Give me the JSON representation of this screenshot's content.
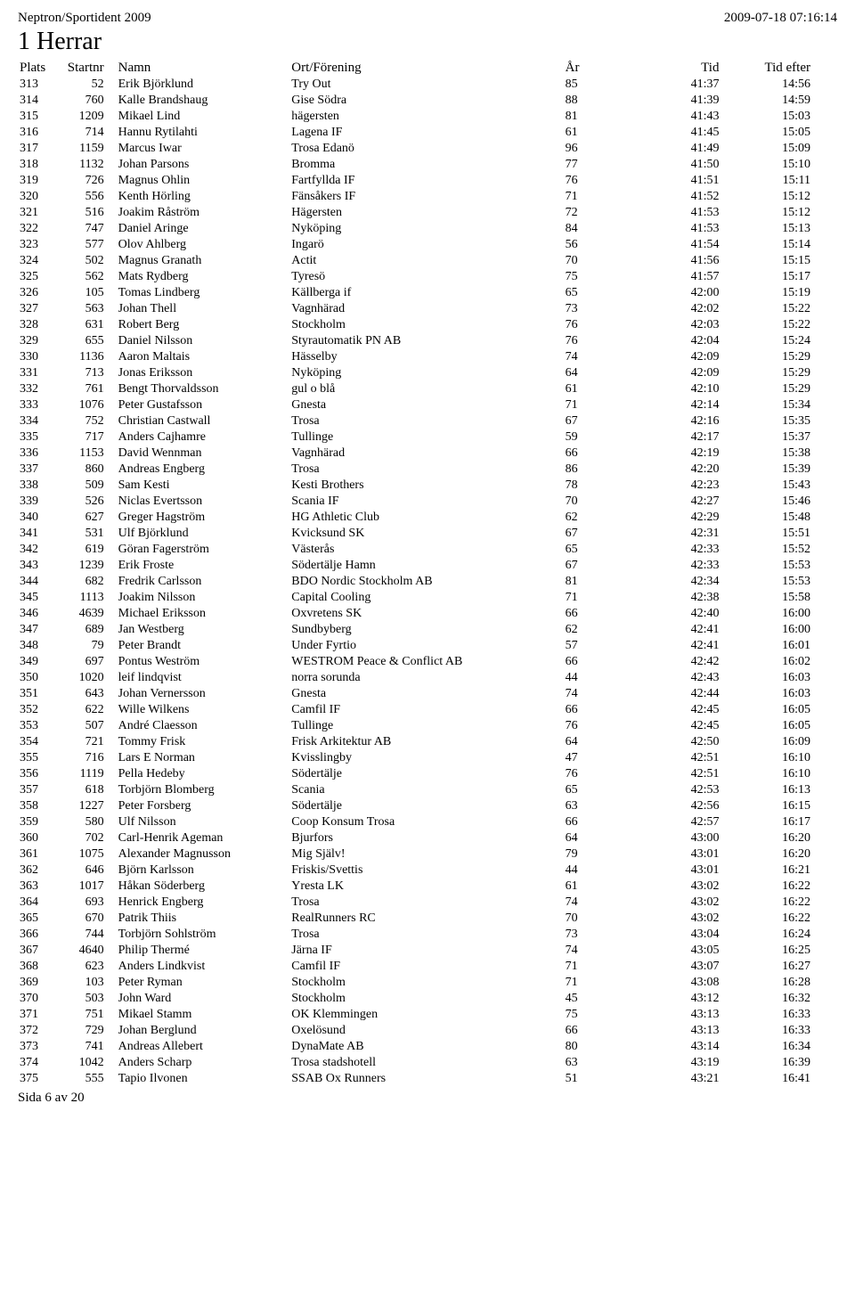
{
  "header": {
    "left": "Neptron/Sportident 2009",
    "right": "2009-07-18 07:16:14",
    "title": "1 Herrar"
  },
  "columns": {
    "plats": "Plats",
    "startnr": "Startnr",
    "namn": "Namn",
    "ort": "Ort/Förening",
    "ar": "År",
    "tid": "Tid",
    "tidefter": "Tid efter"
  },
  "footer": "Sida 6 av 20",
  "rows": [
    {
      "plats": "313",
      "startnr": "52",
      "namn": "Erik Björklund",
      "ort": "Try Out",
      "ar": "85",
      "tid": "41:37",
      "tidefter": "14:56"
    },
    {
      "plats": "314",
      "startnr": "760",
      "namn": "Kalle Brandshaug",
      "ort": "Gise Södra",
      "ar": "88",
      "tid": "41:39",
      "tidefter": "14:59"
    },
    {
      "plats": "315",
      "startnr": "1209",
      "namn": "Mikael Lind",
      "ort": "hägersten",
      "ar": "81",
      "tid": "41:43",
      "tidefter": "15:03"
    },
    {
      "plats": "316",
      "startnr": "714",
      "namn": "Hannu Rytilahti",
      "ort": "Lagena IF",
      "ar": "61",
      "tid": "41:45",
      "tidefter": "15:05"
    },
    {
      "plats": "317",
      "startnr": "1159",
      "namn": "Marcus Iwar",
      "ort": "Trosa Edanö",
      "ar": "96",
      "tid": "41:49",
      "tidefter": "15:09"
    },
    {
      "plats": "318",
      "startnr": "1132",
      "namn": "Johan Parsons",
      "ort": "Bromma",
      "ar": "77",
      "tid": "41:50",
      "tidefter": "15:10"
    },
    {
      "plats": "319",
      "startnr": "726",
      "namn": "Magnus Ohlin",
      "ort": "Fartfyllda IF",
      "ar": "76",
      "tid": "41:51",
      "tidefter": "15:11"
    },
    {
      "plats": "320",
      "startnr": "556",
      "namn": "Kenth Hörling",
      "ort": "Fänsåkers IF",
      "ar": "71",
      "tid": "41:52",
      "tidefter": "15:12"
    },
    {
      "plats": "321",
      "startnr": "516",
      "namn": "Joakim Råström",
      "ort": "Hägersten",
      "ar": "72",
      "tid": "41:53",
      "tidefter": "15:12"
    },
    {
      "plats": "322",
      "startnr": "747",
      "namn": "Daniel Aringe",
      "ort": "Nyköping",
      "ar": "84",
      "tid": "41:53",
      "tidefter": "15:13"
    },
    {
      "plats": "323",
      "startnr": "577",
      "namn": "Olov Ahlberg",
      "ort": "Ingarö",
      "ar": "56",
      "tid": "41:54",
      "tidefter": "15:14"
    },
    {
      "plats": "324",
      "startnr": "502",
      "namn": "Magnus Granath",
      "ort": "Actit",
      "ar": "70",
      "tid": "41:56",
      "tidefter": "15:15"
    },
    {
      "plats": "325",
      "startnr": "562",
      "namn": "Mats Rydberg",
      "ort": "Tyresö",
      "ar": "75",
      "tid": "41:57",
      "tidefter": "15:17"
    },
    {
      "plats": "326",
      "startnr": "105",
      "namn": "Tomas Lindberg",
      "ort": "Källberga if",
      "ar": "65",
      "tid": "42:00",
      "tidefter": "15:19"
    },
    {
      "plats": "327",
      "startnr": "563",
      "namn": "Johan Thell",
      "ort": "Vagnhärad",
      "ar": "73",
      "tid": "42:02",
      "tidefter": "15:22"
    },
    {
      "plats": "328",
      "startnr": "631",
      "namn": "Robert Berg",
      "ort": "Stockholm",
      "ar": "76",
      "tid": "42:03",
      "tidefter": "15:22"
    },
    {
      "plats": "329",
      "startnr": "655",
      "namn": "Daniel Nilsson",
      "ort": "Styrautomatik PN AB",
      "ar": "76",
      "tid": "42:04",
      "tidefter": "15:24"
    },
    {
      "plats": "330",
      "startnr": "1136",
      "namn": "Aaron Maltais",
      "ort": "Hässelby",
      "ar": "74",
      "tid": "42:09",
      "tidefter": "15:29"
    },
    {
      "plats": "331",
      "startnr": "713",
      "namn": "Jonas Eriksson",
      "ort": "Nyköping",
      "ar": "64",
      "tid": "42:09",
      "tidefter": "15:29"
    },
    {
      "plats": "332",
      "startnr": "761",
      "namn": "Bengt Thorvaldsson",
      "ort": "gul o blå",
      "ar": "61",
      "tid": "42:10",
      "tidefter": "15:29"
    },
    {
      "plats": "333",
      "startnr": "1076",
      "namn": "Peter Gustafsson",
      "ort": "Gnesta",
      "ar": "71",
      "tid": "42:14",
      "tidefter": "15:34"
    },
    {
      "plats": "334",
      "startnr": "752",
      "namn": "Christian Castwall",
      "ort": "Trosa",
      "ar": "67",
      "tid": "42:16",
      "tidefter": "15:35"
    },
    {
      "plats": "335",
      "startnr": "717",
      "namn": "Anders Cajhamre",
      "ort": "Tullinge",
      "ar": "59",
      "tid": "42:17",
      "tidefter": "15:37"
    },
    {
      "plats": "336",
      "startnr": "1153",
      "namn": "David Wennman",
      "ort": "Vagnhärad",
      "ar": "66",
      "tid": "42:19",
      "tidefter": "15:38"
    },
    {
      "plats": "337",
      "startnr": "860",
      "namn": "Andreas Engberg",
      "ort": "Trosa",
      "ar": "86",
      "tid": "42:20",
      "tidefter": "15:39"
    },
    {
      "plats": "338",
      "startnr": "509",
      "namn": "Sam Kesti",
      "ort": "Kesti Brothers",
      "ar": "78",
      "tid": "42:23",
      "tidefter": "15:43"
    },
    {
      "plats": "339",
      "startnr": "526",
      "namn": "Niclas Evertsson",
      "ort": "Scania IF",
      "ar": "70",
      "tid": "42:27",
      "tidefter": "15:46"
    },
    {
      "plats": "340",
      "startnr": "627",
      "namn": "Greger Hagström",
      "ort": "HG Athletic Club",
      "ar": "62",
      "tid": "42:29",
      "tidefter": "15:48"
    },
    {
      "plats": "341",
      "startnr": "531",
      "namn": "Ulf Björklund",
      "ort": "Kvicksund SK",
      "ar": "67",
      "tid": "42:31",
      "tidefter": "15:51"
    },
    {
      "plats": "342",
      "startnr": "619",
      "namn": "Göran Fagerström",
      "ort": "Västerås",
      "ar": "65",
      "tid": "42:33",
      "tidefter": "15:52"
    },
    {
      "plats": "343",
      "startnr": "1239",
      "namn": "Erik Froste",
      "ort": "Södertälje Hamn",
      "ar": "67",
      "tid": "42:33",
      "tidefter": "15:53"
    },
    {
      "plats": "344",
      "startnr": "682",
      "namn": "Fredrik Carlsson",
      "ort": "BDO Nordic Stockholm AB",
      "ar": "81",
      "tid": "42:34",
      "tidefter": "15:53"
    },
    {
      "plats": "345",
      "startnr": "1113",
      "namn": "Joakim Nilsson",
      "ort": "Capital Cooling",
      "ar": "71",
      "tid": "42:38",
      "tidefter": "15:58"
    },
    {
      "plats": "346",
      "startnr": "4639",
      "namn": "Michael Eriksson",
      "ort": "Oxvretens SK",
      "ar": "66",
      "tid": "42:40",
      "tidefter": "16:00"
    },
    {
      "plats": "347",
      "startnr": "689",
      "namn": "Jan Westberg",
      "ort": "Sundbyberg",
      "ar": "62",
      "tid": "42:41",
      "tidefter": "16:00"
    },
    {
      "plats": "348",
      "startnr": "79",
      "namn": "Peter Brandt",
      "ort": "Under Fyrtio",
      "ar": "57",
      "tid": "42:41",
      "tidefter": "16:01"
    },
    {
      "plats": "349",
      "startnr": "697",
      "namn": "Pontus Weström",
      "ort": "WESTROM Peace & Conflict AB",
      "ar": "66",
      "tid": "42:42",
      "tidefter": "16:02"
    },
    {
      "plats": "350",
      "startnr": "1020",
      "namn": "leif lindqvist",
      "ort": "norra sorunda",
      "ar": "44",
      "tid": "42:43",
      "tidefter": "16:03"
    },
    {
      "plats": "351",
      "startnr": "643",
      "namn": "Johan Vernersson",
      "ort": "Gnesta",
      "ar": "74",
      "tid": "42:44",
      "tidefter": "16:03"
    },
    {
      "plats": "352",
      "startnr": "622",
      "namn": "Wille Wilkens",
      "ort": "Camfil IF",
      "ar": "66",
      "tid": "42:45",
      "tidefter": "16:05"
    },
    {
      "plats": "353",
      "startnr": "507",
      "namn": "André Claesson",
      "ort": "Tullinge",
      "ar": "76",
      "tid": "42:45",
      "tidefter": "16:05"
    },
    {
      "plats": "354",
      "startnr": "721",
      "namn": "Tommy Frisk",
      "ort": "Frisk Arkitektur AB",
      "ar": "64",
      "tid": "42:50",
      "tidefter": "16:09"
    },
    {
      "plats": "355",
      "startnr": "716",
      "namn": "Lars E Norman",
      "ort": "Kvisslingby",
      "ar": "47",
      "tid": "42:51",
      "tidefter": "16:10"
    },
    {
      "plats": "356",
      "startnr": "1119",
      "namn": "Pella Hedeby",
      "ort": "Södertälje",
      "ar": "76",
      "tid": "42:51",
      "tidefter": "16:10"
    },
    {
      "plats": "357",
      "startnr": "618",
      "namn": "Torbjörn Blomberg",
      "ort": "Scania",
      "ar": "65",
      "tid": "42:53",
      "tidefter": "16:13"
    },
    {
      "plats": "358",
      "startnr": "1227",
      "namn": "Peter Forsberg",
      "ort": "Södertälje",
      "ar": "63",
      "tid": "42:56",
      "tidefter": "16:15"
    },
    {
      "plats": "359",
      "startnr": "580",
      "namn": "Ulf Nilsson",
      "ort": "Coop Konsum Trosa",
      "ar": "66",
      "tid": "42:57",
      "tidefter": "16:17"
    },
    {
      "plats": "360",
      "startnr": "702",
      "namn": "Carl-Henrik Ageman",
      "ort": "Bjurfors",
      "ar": "64",
      "tid": "43:00",
      "tidefter": "16:20"
    },
    {
      "plats": "361",
      "startnr": "1075",
      "namn": "Alexander Magnusson",
      "ort": "Mig Själv!",
      "ar": "79",
      "tid": "43:01",
      "tidefter": "16:20"
    },
    {
      "plats": "362",
      "startnr": "646",
      "namn": "Björn Karlsson",
      "ort": "Friskis/Svettis",
      "ar": "44",
      "tid": "43:01",
      "tidefter": "16:21"
    },
    {
      "plats": "363",
      "startnr": "1017",
      "namn": "Håkan Söderberg",
      "ort": "Yresta LK",
      "ar": "61",
      "tid": "43:02",
      "tidefter": "16:22"
    },
    {
      "plats": "364",
      "startnr": "693",
      "namn": "Henrick Engberg",
      "ort": "Trosa",
      "ar": "74",
      "tid": "43:02",
      "tidefter": "16:22"
    },
    {
      "plats": "365",
      "startnr": "670",
      "namn": "Patrik Thiis",
      "ort": "RealRunners RC",
      "ar": "70",
      "tid": "43:02",
      "tidefter": "16:22"
    },
    {
      "plats": "366",
      "startnr": "744",
      "namn": "Torbjörn Sohlström",
      "ort": "Trosa",
      "ar": "73",
      "tid": "43:04",
      "tidefter": "16:24"
    },
    {
      "plats": "367",
      "startnr": "4640",
      "namn": "Philip Thermé",
      "ort": "Järna IF",
      "ar": "74",
      "tid": "43:05",
      "tidefter": "16:25"
    },
    {
      "plats": "368",
      "startnr": "623",
      "namn": "Anders Lindkvist",
      "ort": "Camfil IF",
      "ar": "71",
      "tid": "43:07",
      "tidefter": "16:27"
    },
    {
      "plats": "369",
      "startnr": "103",
      "namn": "Peter Ryman",
      "ort": "Stockholm",
      "ar": "71",
      "tid": "43:08",
      "tidefter": "16:28"
    },
    {
      "plats": "370",
      "startnr": "503",
      "namn": "John Ward",
      "ort": "Stockholm",
      "ar": "45",
      "tid": "43:12",
      "tidefter": "16:32"
    },
    {
      "plats": "371",
      "startnr": "751",
      "namn": "Mikael Stamm",
      "ort": "OK Klemmingen",
      "ar": "75",
      "tid": "43:13",
      "tidefter": "16:33"
    },
    {
      "plats": "372",
      "startnr": "729",
      "namn": "Johan Berglund",
      "ort": "Oxelösund",
      "ar": "66",
      "tid": "43:13",
      "tidefter": "16:33"
    },
    {
      "plats": "373",
      "startnr": "741",
      "namn": "Andreas Allebert",
      "ort": "DynaMate AB",
      "ar": "80",
      "tid": "43:14",
      "tidefter": "16:34"
    },
    {
      "plats": "374",
      "startnr": "1042",
      "namn": "Anders Scharp",
      "ort": "Trosa stadshotell",
      "ar": "63",
      "tid": "43:19",
      "tidefter": "16:39"
    },
    {
      "plats": "375",
      "startnr": "555",
      "namn": "Tapio Ilvonen",
      "ort": "SSAB Ox Runners",
      "ar": "51",
      "tid": "43:21",
      "tidefter": "16:41"
    }
  ]
}
